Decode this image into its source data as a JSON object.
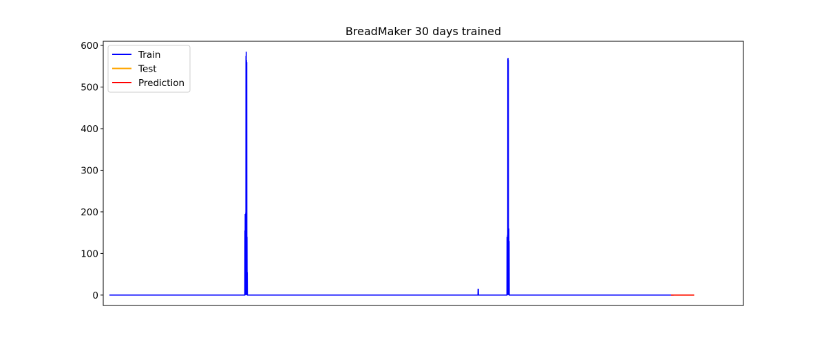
{
  "chart_data": {
    "type": "line",
    "title": "BreadMaker 30 days trained",
    "xlabel": "",
    "ylabel": "",
    "ylim": [
      -25,
      610
    ],
    "xlim": [
      -24,
      2472
    ],
    "x_ticks_visible": false,
    "yticks": [
      0,
      100,
      200,
      300,
      400,
      500,
      600
    ],
    "grid": false,
    "legend_position": "top-left",
    "series": [
      {
        "name": "Train",
        "color": "#0000ff",
        "x": [
          0,
          528,
          528.5,
          529,
          529.5,
          530,
          530.5,
          531,
          531.5,
          532,
          532.5,
          533,
          533.5,
          534,
          534.5,
          535,
          535.5,
          536,
          536.5,
          537,
          537.5,
          538,
          538.5,
          539,
          539.5,
          540,
          1437,
          1437.5,
          1438,
          1438.5,
          1439,
          1550,
          1550.5,
          1551,
          1551.5,
          1552,
          1552.5,
          1553,
          1553.5,
          1554,
          1554.5,
          1555,
          1555.5,
          1556,
          1556.5,
          1557,
          1557.5,
          1558,
          1558.5,
          1559,
          1559.5,
          1560,
          1560.5,
          1561,
          2200
        ],
        "y": [
          0,
          0,
          155,
          0,
          195,
          0,
          150,
          0,
          198,
          0,
          575,
          0,
          585,
          10,
          565,
          0,
          560,
          0,
          140,
          0,
          55,
          0,
          0,
          0,
          0,
          0,
          0,
          15,
          0,
          15,
          0,
          0,
          140,
          0,
          140,
          0,
          145,
          0,
          568,
          480,
          570,
          0,
          565,
          0,
          160,
          0,
          160,
          0,
          130,
          0,
          0,
          0,
          0,
          0,
          0
        ]
      },
      {
        "name": "Test",
        "color": "#ffa500",
        "x": [
          2190,
          2280
        ],
        "y": [
          0,
          0
        ]
      },
      {
        "name": "Prediction",
        "color": "#ff0000",
        "x": [
          2190,
          2280
        ],
        "y": [
          0,
          0
        ]
      }
    ]
  }
}
